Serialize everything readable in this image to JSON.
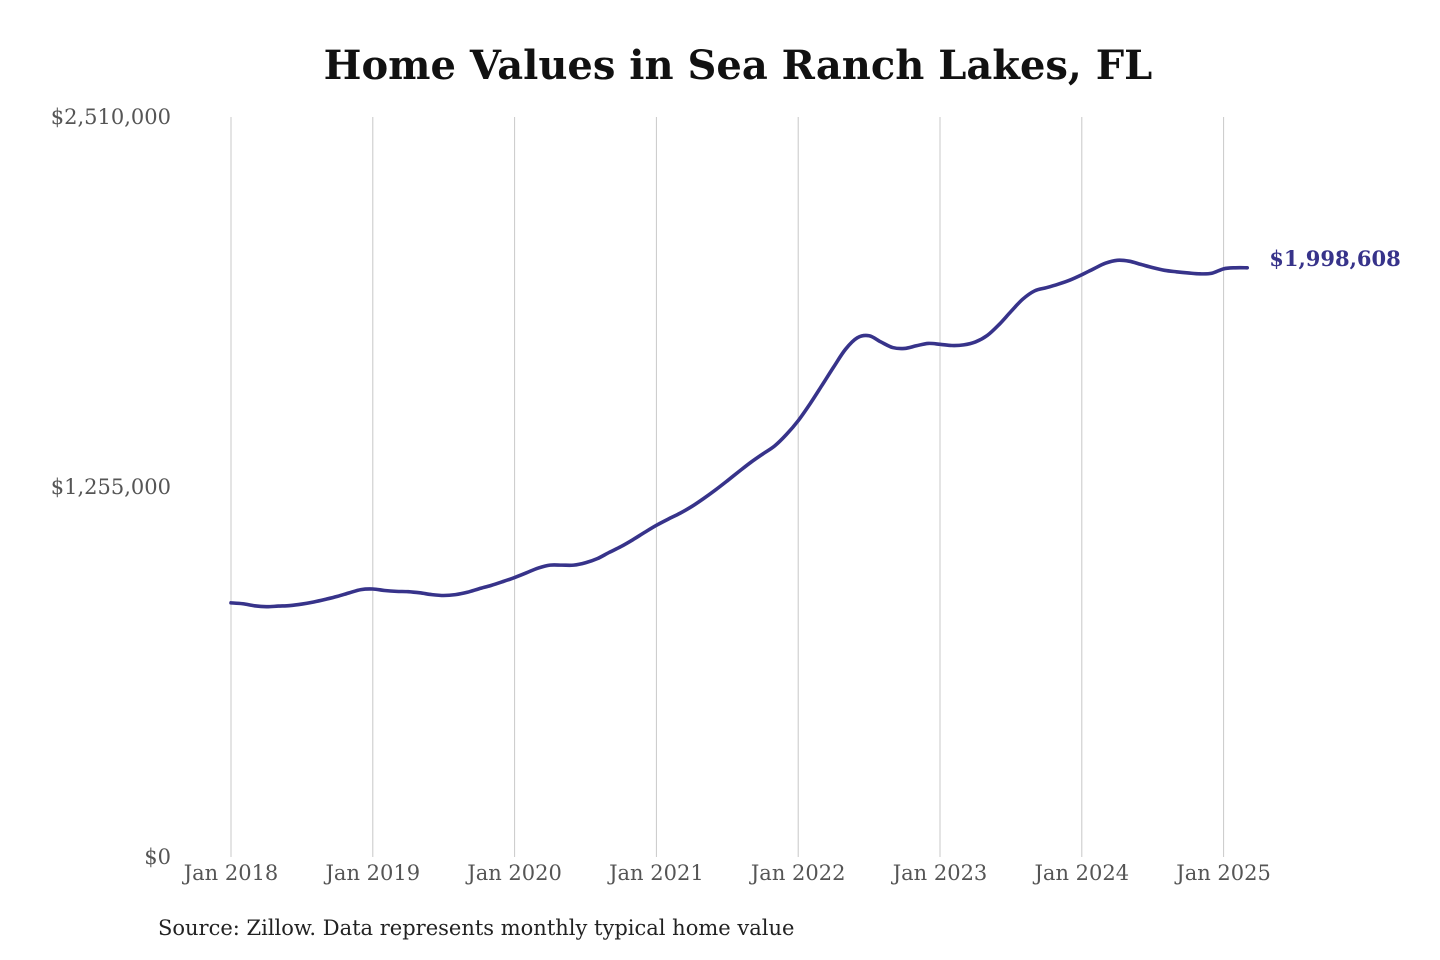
{
  "chart_data": {
    "type": "line",
    "title": "Home Values in Sea Ranch Lakes, FL",
    "xlabel": "",
    "ylabel": "",
    "source": "Source: Zillow. Data represents monthly typical home value",
    "x_ticks": [
      "Jan 2018",
      "Jan 2019",
      "Jan 2020",
      "Jan 2021",
      "Jan 2022",
      "Jan 2023",
      "Jan 2024",
      "Jan 2025"
    ],
    "x_range": [
      "Jan 2018",
      "Mar 2025"
    ],
    "y_ticks": [
      "$0",
      "$1,255,000",
      "$2,510,000"
    ],
    "ylim": [
      0,
      2510000
    ],
    "grid": "vertical gridlines at each January",
    "end_label": "$1,998,608",
    "colors": {
      "line": "#37338a",
      "grid": "#c8c8c8",
      "end_label": "#37338a"
    },
    "series": [
      {
        "dates": [
          "Jan 2018",
          "Feb 2018",
          "Mar 2018",
          "Apr 2018",
          "May 2018",
          "Jun 2018",
          "Jul 2018",
          "Aug 2018",
          "Sep 2018",
          "Oct 2018",
          "Nov 2018",
          "Dec 2018",
          "Jan 2019",
          "Feb 2019",
          "Mar 2019",
          "Apr 2019",
          "May 2019",
          "Jun 2019",
          "Jul 2019",
          "Aug 2019",
          "Sep 2019",
          "Oct 2019",
          "Nov 2019",
          "Dec 2019",
          "Jan 2020",
          "Feb 2020",
          "Mar 2020",
          "Apr 2020",
          "May 2020",
          "Jun 2020",
          "Jul 2020",
          "Aug 2020",
          "Sep 2020",
          "Oct 2020",
          "Nov 2020",
          "Dec 2020",
          "Jan 2021",
          "Feb 2021",
          "Mar 2021",
          "Apr 2021",
          "May 2021",
          "Jun 2021",
          "Jul 2021",
          "Aug 2021",
          "Sep 2021",
          "Oct 2021",
          "Nov 2021",
          "Dec 2021",
          "Jan 2022",
          "Feb 2022",
          "Mar 2022",
          "Apr 2022",
          "May 2022",
          "Jun 2022",
          "Jul 2022",
          "Aug 2022",
          "Sep 2022",
          "Oct 2022",
          "Nov 2022",
          "Dec 2022",
          "Jan 2023",
          "Feb 2023",
          "Mar 2023",
          "Apr 2023",
          "May 2023",
          "Jun 2023",
          "Jul 2023",
          "Aug 2023",
          "Sep 2023",
          "Oct 2023",
          "Nov 2023",
          "Dec 2023",
          "Jan 2024",
          "Feb 2024",
          "Mar 2024",
          "Apr 2024",
          "May 2024",
          "Jun 2024",
          "Jul 2024",
          "Aug 2024",
          "Sep 2024",
          "Oct 2024",
          "Nov 2024",
          "Dec 2024",
          "Jan 2025",
          "Feb 2025",
          "Mar 2025"
        ],
        "values": [
          862000,
          859000,
          852000,
          849000,
          851000,
          853000,
          858000,
          865000,
          874000,
          884000,
          896000,
          907000,
          909000,
          904000,
          901000,
          900000,
          896000,
          890000,
          887000,
          890000,
          898000,
          910000,
          921000,
          934000,
          948000,
          964000,
          980000,
          990000,
          990000,
          990000,
          998000,
          1012000,
          1033000,
          1053000,
          1076000,
          1101000,
          1125000,
          1146000,
          1166000,
          1189000,
          1216000,
          1245000,
          1276000,
          1308000,
          1339000,
          1367000,
          1394000,
          1433000,
          1480000,
          1537000,
          1599000,
          1662000,
          1722000,
          1761000,
          1768000,
          1747000,
          1728000,
          1725000,
          1734000,
          1742000,
          1739000,
          1735000,
          1737000,
          1747000,
          1769000,
          1806000,
          1850000,
          1892000,
          1920000,
          1931000,
          1943000,
          1957000,
          1975000,
          1995000,
          2014000,
          2024000,
          2021000,
          2010000,
          1999000,
          1990000,
          1985000,
          1981000,
          1978000,
          1980000,
          1995000,
          1998608,
          1998608
        ]
      }
    ]
  }
}
